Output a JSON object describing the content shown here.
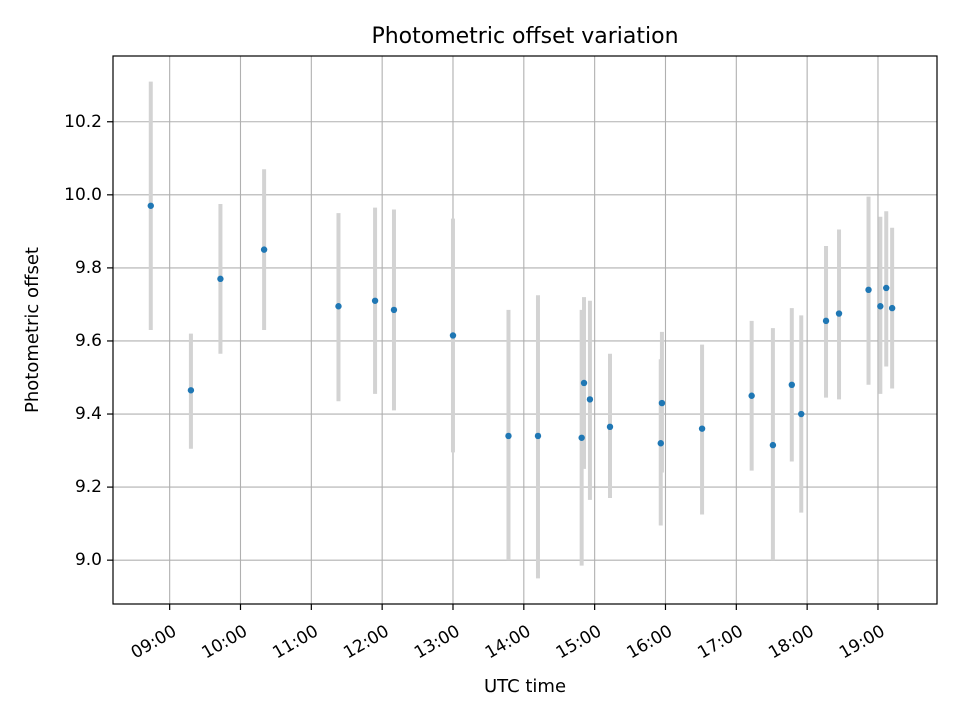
{
  "chart_data": {
    "type": "scatter",
    "title": "Photometric offset variation",
    "xlabel": "UTC time",
    "ylabel": "Photometric offset",
    "xlim": [
      "08:12",
      "19:50"
    ],
    "ylim": [
      8.88,
      10.38
    ],
    "grid": true,
    "legend": "none",
    "colors": {
      "point": "#1f77b4",
      "errorbar": "#d3d3d3",
      "grid": "#b0b0b0"
    },
    "x_ticks": [
      "09:00",
      "10:00",
      "11:00",
      "12:00",
      "13:00",
      "14:00",
      "15:00",
      "16:00",
      "17:00",
      "18:00",
      "19:00"
    ],
    "y_ticks": [
      "9.0",
      "9.2",
      "9.4",
      "9.6",
      "9.8",
      "10.0",
      "10.2"
    ],
    "points": [
      {
        "time": "08:44",
        "y": 9.97,
        "low": 9.63,
        "high": 10.31
      },
      {
        "time": "09:18",
        "y": 9.465,
        "low": 9.305,
        "high": 9.62
      },
      {
        "time": "09:43",
        "y": 9.77,
        "low": 9.565,
        "high": 9.975
      },
      {
        "time": "10:20",
        "y": 9.85,
        "low": 9.63,
        "high": 10.07
      },
      {
        "time": "11:23",
        "y": 9.695,
        "low": 9.435,
        "high": 9.95
      },
      {
        "time": "11:54",
        "y": 9.71,
        "low": 9.455,
        "high": 9.965
      },
      {
        "time": "12:10",
        "y": 9.685,
        "low": 9.41,
        "high": 9.96
      },
      {
        "time": "13:00",
        "y": 9.615,
        "low": 9.295,
        "high": 9.935
      },
      {
        "time": "13:47",
        "y": 9.34,
        "low": 9.0,
        "high": 9.685
      },
      {
        "time": "14:12",
        "y": 9.34,
        "low": 8.95,
        "high": 9.725
      },
      {
        "time": "14:49",
        "y": 9.335,
        "low": 8.985,
        "high": 9.685
      },
      {
        "time": "14:51",
        "y": 9.485,
        "low": 9.25,
        "high": 9.72
      },
      {
        "time": "14:56",
        "y": 9.44,
        "low": 9.165,
        "high": 9.71
      },
      {
        "time": "15:13",
        "y": 9.365,
        "low": 9.17,
        "high": 9.565
      },
      {
        "time": "15:56",
        "y": 9.32,
        "low": 9.095,
        "high": 9.55
      },
      {
        "time": "15:57",
        "y": 9.43,
        "low": 9.24,
        "high": 9.625
      },
      {
        "time": "16:31",
        "y": 9.36,
        "low": 9.125,
        "high": 9.59
      },
      {
        "time": "17:13",
        "y": 9.45,
        "low": 9.245,
        "high": 9.655
      },
      {
        "time": "17:31",
        "y": 9.315,
        "low": 9.0,
        "high": 9.635
      },
      {
        "time": "17:47",
        "y": 9.48,
        "low": 9.27,
        "high": 9.69
      },
      {
        "time": "17:55",
        "y": 9.4,
        "low": 9.13,
        "high": 9.67
      },
      {
        "time": "18:16",
        "y": 9.655,
        "low": 9.445,
        "high": 9.86
      },
      {
        "time": "18:27",
        "y": 9.675,
        "low": 9.44,
        "high": 9.905
      },
      {
        "time": "18:52",
        "y": 9.74,
        "low": 9.48,
        "high": 9.995
      },
      {
        "time": "19:02",
        "y": 9.695,
        "low": 9.455,
        "high": 9.94
      },
      {
        "time": "19:07",
        "y": 9.745,
        "low": 9.53,
        "high": 9.955
      },
      {
        "time": "19:12",
        "y": 9.69,
        "low": 9.47,
        "high": 9.91
      }
    ]
  }
}
